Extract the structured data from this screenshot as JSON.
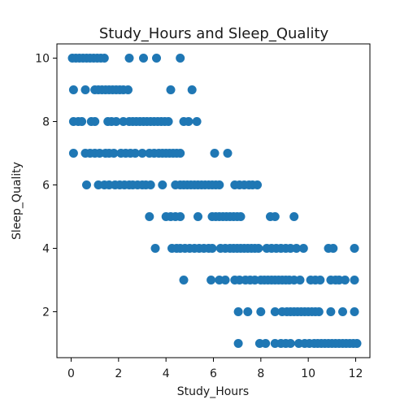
{
  "chart_data": {
    "type": "scatter",
    "title": "Study_Hours and Sleep_Quality",
    "xlabel": "Study_Hours",
    "ylabel": "Sleep_Quality",
    "xlim": [
      -0.6,
      12.6
    ],
    "ylim": [
      0.55,
      10.45
    ],
    "xticks": [
      0,
      2,
      4,
      6,
      8,
      10,
      12
    ],
    "yticks": [
      2,
      4,
      6,
      8,
      10
    ],
    "grid": false,
    "marker_color": "#1f77b4",
    "series": [
      {
        "points": [
          [
            0.05,
            10
          ],
          [
            0.2,
            10
          ],
          [
            0.35,
            10
          ],
          [
            0.5,
            10
          ],
          [
            0.65,
            10
          ],
          [
            0.8,
            10
          ],
          [
            0.95,
            10
          ],
          [
            1.1,
            10
          ],
          [
            1.25,
            10
          ],
          [
            1.4,
            10
          ],
          [
            2.45,
            10
          ],
          [
            3.05,
            10
          ],
          [
            3.6,
            10
          ],
          [
            4.6,
            10
          ],
          [
            0.1,
            9
          ],
          [
            0.6,
            9
          ],
          [
            1.0,
            9
          ],
          [
            1.15,
            9
          ],
          [
            1.3,
            9
          ],
          [
            1.45,
            9
          ],
          [
            1.6,
            9
          ],
          [
            1.75,
            9
          ],
          [
            1.9,
            9
          ],
          [
            2.05,
            9
          ],
          [
            2.2,
            9
          ],
          [
            2.4,
            9
          ],
          [
            4.2,
            9
          ],
          [
            5.1,
            9
          ],
          [
            0.1,
            8
          ],
          [
            0.3,
            8
          ],
          [
            0.45,
            8
          ],
          [
            0.85,
            8
          ],
          [
            1.0,
            8
          ],
          [
            1.55,
            8
          ],
          [
            1.7,
            8
          ],
          [
            1.9,
            8
          ],
          [
            2.2,
            8
          ],
          [
            2.45,
            8
          ],
          [
            2.6,
            8
          ],
          [
            2.75,
            8
          ],
          [
            2.9,
            8
          ],
          [
            3.05,
            8
          ],
          [
            3.2,
            8
          ],
          [
            3.35,
            8
          ],
          [
            3.5,
            8
          ],
          [
            3.65,
            8
          ],
          [
            3.8,
            8
          ],
          [
            3.95,
            8
          ],
          [
            4.1,
            8
          ],
          [
            4.75,
            8
          ],
          [
            4.95,
            8
          ],
          [
            5.3,
            8
          ],
          [
            0.1,
            7
          ],
          [
            0.6,
            7
          ],
          [
            0.8,
            7
          ],
          [
            1.0,
            7
          ],
          [
            1.2,
            7
          ],
          [
            1.45,
            7
          ],
          [
            1.6,
            7
          ],
          [
            1.8,
            7
          ],
          [
            2.1,
            7
          ],
          [
            2.3,
            7
          ],
          [
            2.5,
            7
          ],
          [
            2.7,
            7
          ],
          [
            3.0,
            7
          ],
          [
            3.3,
            7
          ],
          [
            3.5,
            7
          ],
          [
            3.7,
            7
          ],
          [
            3.85,
            7
          ],
          [
            4.0,
            7
          ],
          [
            4.15,
            7
          ],
          [
            4.3,
            7
          ],
          [
            4.45,
            7
          ],
          [
            4.6,
            7
          ],
          [
            6.05,
            7
          ],
          [
            6.6,
            7
          ],
          [
            0.65,
            6
          ],
          [
            1.15,
            6
          ],
          [
            1.4,
            6
          ],
          [
            1.6,
            6
          ],
          [
            1.85,
            6
          ],
          [
            2.05,
            6
          ],
          [
            2.25,
            6
          ],
          [
            2.45,
            6
          ],
          [
            2.6,
            6
          ],
          [
            2.8,
            6
          ],
          [
            3.0,
            6
          ],
          [
            3.15,
            6
          ],
          [
            3.35,
            6
          ],
          [
            3.85,
            6
          ],
          [
            4.4,
            6
          ],
          [
            4.6,
            6
          ],
          [
            4.75,
            6
          ],
          [
            4.9,
            6
          ],
          [
            5.05,
            6
          ],
          [
            5.2,
            6
          ],
          [
            5.35,
            6
          ],
          [
            5.5,
            6
          ],
          [
            5.65,
            6
          ],
          [
            5.8,
            6
          ],
          [
            5.95,
            6
          ],
          [
            6.1,
            6
          ],
          [
            6.25,
            6
          ],
          [
            6.9,
            6
          ],
          [
            7.1,
            6
          ],
          [
            7.3,
            6
          ],
          [
            7.5,
            6
          ],
          [
            7.65,
            6
          ],
          [
            7.85,
            6
          ],
          [
            3.3,
            5
          ],
          [
            4.0,
            5
          ],
          [
            4.2,
            5
          ],
          [
            4.4,
            5
          ],
          [
            4.6,
            5
          ],
          [
            5.35,
            5
          ],
          [
            5.95,
            5
          ],
          [
            6.1,
            5
          ],
          [
            6.25,
            5
          ],
          [
            6.4,
            5
          ],
          [
            6.55,
            5
          ],
          [
            6.7,
            5
          ],
          [
            6.85,
            5
          ],
          [
            7.0,
            5
          ],
          [
            7.15,
            5
          ],
          [
            8.4,
            5
          ],
          [
            8.6,
            5
          ],
          [
            9.4,
            5
          ],
          [
            3.55,
            4
          ],
          [
            4.25,
            4
          ],
          [
            4.45,
            4
          ],
          [
            4.6,
            4
          ],
          [
            4.8,
            4
          ],
          [
            5.0,
            4
          ],
          [
            5.2,
            4
          ],
          [
            5.4,
            4
          ],
          [
            5.6,
            4
          ],
          [
            5.8,
            4
          ],
          [
            5.95,
            4
          ],
          [
            6.3,
            4
          ],
          [
            6.5,
            4
          ],
          [
            6.7,
            4
          ],
          [
            6.85,
            4
          ],
          [
            7.0,
            4
          ],
          [
            7.15,
            4
          ],
          [
            7.3,
            4
          ],
          [
            7.45,
            4
          ],
          [
            7.6,
            4
          ],
          [
            7.75,
            4
          ],
          [
            7.9,
            4
          ],
          [
            8.25,
            4
          ],
          [
            8.45,
            4
          ],
          [
            8.65,
            4
          ],
          [
            8.85,
            4
          ],
          [
            9.05,
            4
          ],
          [
            9.25,
            4
          ],
          [
            9.5,
            4
          ],
          [
            9.8,
            4
          ],
          [
            10.85,
            4
          ],
          [
            11.05,
            4
          ],
          [
            11.95,
            4
          ],
          [
            4.75,
            3
          ],
          [
            5.9,
            3
          ],
          [
            6.25,
            3
          ],
          [
            6.5,
            3
          ],
          [
            6.9,
            3
          ],
          [
            7.1,
            3
          ],
          [
            7.35,
            3
          ],
          [
            7.55,
            3
          ],
          [
            7.75,
            3
          ],
          [
            8.0,
            3
          ],
          [
            8.15,
            3
          ],
          [
            8.3,
            3
          ],
          [
            8.45,
            3
          ],
          [
            8.6,
            3
          ],
          [
            8.75,
            3
          ],
          [
            8.9,
            3
          ],
          [
            9.05,
            3
          ],
          [
            9.2,
            3
          ],
          [
            9.4,
            3
          ],
          [
            9.65,
            3
          ],
          [
            10.1,
            3
          ],
          [
            10.3,
            3
          ],
          [
            10.5,
            3
          ],
          [
            10.95,
            3
          ],
          [
            11.15,
            3
          ],
          [
            11.3,
            3
          ],
          [
            11.55,
            3
          ],
          [
            11.95,
            3
          ],
          [
            7.05,
            2
          ],
          [
            7.45,
            2
          ],
          [
            8.0,
            2
          ],
          [
            8.6,
            2
          ],
          [
            8.9,
            2
          ],
          [
            9.1,
            2
          ],
          [
            9.25,
            2
          ],
          [
            9.4,
            2
          ],
          [
            9.55,
            2
          ],
          [
            9.7,
            2
          ],
          [
            9.85,
            2
          ],
          [
            10.0,
            2
          ],
          [
            10.15,
            2
          ],
          [
            10.3,
            2
          ],
          [
            10.45,
            2
          ],
          [
            10.95,
            2
          ],
          [
            11.45,
            2
          ],
          [
            11.95,
            2
          ],
          [
            7.05,
            1
          ],
          [
            7.95,
            1
          ],
          [
            8.2,
            1
          ],
          [
            8.6,
            1
          ],
          [
            8.85,
            1
          ],
          [
            9.05,
            1
          ],
          [
            9.25,
            1
          ],
          [
            9.6,
            1
          ],
          [
            9.85,
            1
          ],
          [
            10.05,
            1
          ],
          [
            10.25,
            1
          ],
          [
            10.4,
            1
          ],
          [
            10.55,
            1
          ],
          [
            10.7,
            1
          ],
          [
            10.85,
            1
          ],
          [
            11.0,
            1
          ],
          [
            11.15,
            1
          ],
          [
            11.3,
            1
          ],
          [
            11.45,
            1
          ],
          [
            11.6,
            1
          ],
          [
            11.75,
            1
          ],
          [
            11.9,
            1
          ],
          [
            12.05,
            1
          ]
        ]
      }
    ]
  }
}
